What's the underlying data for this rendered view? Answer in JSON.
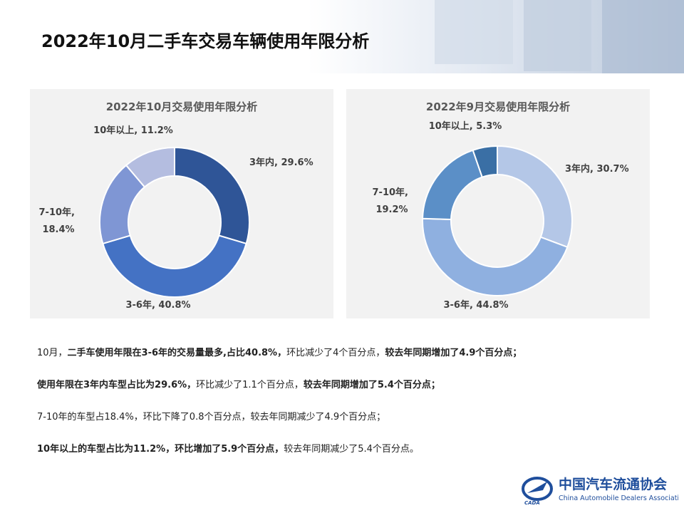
{
  "header": {
    "title": "2022年10月二手车交易车辆使用年限分析"
  },
  "chart_data": [
    {
      "type": "donut",
      "title": "2022年10月交易使用年限分析",
      "values": [
        29.6,
        40.8,
        18.4,
        11.2
      ],
      "value_labels": [
        "3年内, 29.6%",
        "3-6年, 40.8%",
        "7-10年, 18.4%",
        "10年以上, 11.2%"
      ],
      "colors": [
        "#2f5597",
        "#4472c4",
        "#7f96d4",
        "#b4bde0"
      ]
    },
    {
      "type": "donut",
      "title": "2022年9月交易使用年限分析",
      "values": [
        30.7,
        44.8,
        19.2,
        5.3
      ],
      "value_labels": [
        "3年内, 30.7%",
        "3-6年, 44.8%",
        "7-10年, 19.2%",
        "10年以上, 5.3%"
      ],
      "colors": [
        "#b4c7e7",
        "#8fb0e0",
        "#5b8fc7",
        "#3a6fa5"
      ]
    }
  ],
  "paragraphs": [
    [
      {
        "text": "10月，",
        "bold": false
      },
      {
        "text": "二手车使用年限在3-6年的交易量最多,占比40.8%，",
        "bold": true
      },
      {
        "text": "环比减少了4个百分点，",
        "bold": false
      },
      {
        "text": "较去年同期增加了4.9个百分点；",
        "bold": true
      }
    ],
    [
      {
        "text": "使用年限在3年内车型占比为29.6%，",
        "bold": true
      },
      {
        "text": "环比减少了1.1个百分点，",
        "bold": false
      },
      {
        "text": "较去年同期增加了5.4个百分点；",
        "bold": true
      }
    ],
    [
      {
        "text": "7-10年的车型占18.4%，环比下降了0.8个百分点，较去年同期减少了4.9个百分点；",
        "bold": false
      }
    ],
    [
      {
        "text": "10年以上的车型占比为11.2%，环比增加了5.9个百分点，",
        "bold": true
      },
      {
        "text": "较去年同期减少了5.4个百分点。",
        "bold": false
      }
    ]
  ],
  "logo": {
    "name": "中国汽车流通协会",
    "english": "China Automobile Dealers Association",
    "mark": "CADA"
  }
}
